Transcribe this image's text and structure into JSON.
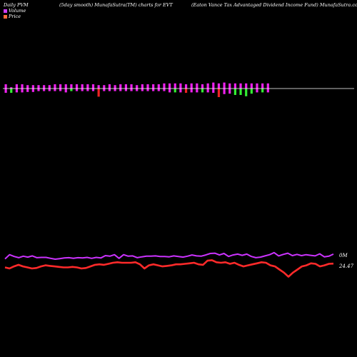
{
  "header": {
    "left": "Daily PVM",
    "middle": "(5day smooth) MunafaSutra(TM) charts for EVT",
    "right": "(Eaton  Vance  Tax Advantaged Dividend Income  Fund) MunafaSutra.com"
  },
  "legend": {
    "items": [
      {
        "label": "Volume",
        "color": "#d03cff"
      },
      {
        "label": "Price",
        "color": "#ff6a3c"
      }
    ]
  },
  "colors": {
    "background": "#000000",
    "volume_line": "#cc33ff",
    "price_line": "#ff2a2a",
    "bar_up": "#ee22ee",
    "bar_down": "#33ee33",
    "bar_red": "#ee2222",
    "baseline": "#ffffff"
  },
  "chart_data": [
    {
      "type": "bar",
      "name": "volume-pvm-bars",
      "bars": [
        {
          "up": 1.0,
          "down": 1.0,
          "color": "up"
        },
        {
          "up": 0.3,
          "down": 1.0,
          "color": "down"
        },
        {
          "up": 1.0,
          "down": 0.9,
          "color": "up"
        },
        {
          "up": 1.0,
          "down": 0.9,
          "color": "up"
        },
        {
          "up": 0.8,
          "down": 0.8,
          "color": "up"
        },
        {
          "up": 0.8,
          "down": 0.8,
          "color": "up"
        },
        {
          "up": 0.8,
          "down": 0.6,
          "color": "up"
        },
        {
          "up": 0.8,
          "down": 0.6,
          "color": "up"
        },
        {
          "up": 0.8,
          "down": 0.6,
          "color": "up"
        },
        {
          "up": 1.0,
          "down": 0.6,
          "color": "up"
        },
        {
          "up": 1.0,
          "down": 0.6,
          "color": "up"
        },
        {
          "up": 1.0,
          "down": 0.9,
          "color": "up"
        },
        {
          "up": 1.0,
          "down": 0.6,
          "color": "down"
        },
        {
          "up": 1.0,
          "down": 0.6,
          "color": "up"
        },
        {
          "up": 1.0,
          "down": 0.6,
          "color": "up"
        },
        {
          "up": 1.0,
          "down": 0.6,
          "color": "up"
        },
        {
          "up": 1.0,
          "down": 0.6,
          "color": "up"
        },
        {
          "up": 0.8,
          "down": 1.9,
          "color": "red"
        },
        {
          "up": 0.8,
          "down": 0.6,
          "color": "up"
        },
        {
          "up": 1.0,
          "down": 0.6,
          "color": "up"
        },
        {
          "up": 0.8,
          "down": 0.6,
          "color": "up"
        },
        {
          "up": 1.0,
          "down": 0.6,
          "color": "up"
        },
        {
          "up": 1.0,
          "down": 0.6,
          "color": "up"
        },
        {
          "up": 1.0,
          "down": 0.6,
          "color": "up"
        },
        {
          "up": 0.8,
          "down": 0.6,
          "color": "up"
        },
        {
          "up": 1.0,
          "down": 0.6,
          "color": "up"
        },
        {
          "up": 1.0,
          "down": 0.6,
          "color": "up"
        },
        {
          "up": 1.0,
          "down": 0.6,
          "color": "up"
        },
        {
          "up": 1.0,
          "down": 0.6,
          "color": "up"
        },
        {
          "up": 1.2,
          "down": 0.6,
          "color": "up"
        },
        {
          "up": 1.2,
          "down": 0.9,
          "color": "up"
        },
        {
          "up": 1.2,
          "down": 0.9,
          "color": "down"
        },
        {
          "up": 1.2,
          "down": 0.9,
          "color": "up"
        },
        {
          "up": 1.0,
          "down": 1.0,
          "color": "red"
        },
        {
          "up": 1.2,
          "down": 0.9,
          "color": "up"
        },
        {
          "up": 1.2,
          "down": 0.9,
          "color": "up"
        },
        {
          "up": 1.0,
          "down": 0.9,
          "color": "down"
        },
        {
          "up": 1.2,
          "down": 0.9,
          "color": "up"
        },
        {
          "up": 1.4,
          "down": 1.0,
          "color": "up"
        },
        {
          "up": 1.2,
          "down": 2.0,
          "color": "red"
        },
        {
          "up": 1.4,
          "down": 1.3,
          "color": "up"
        },
        {
          "up": 1.2,
          "down": 1.2,
          "color": "up"
        },
        {
          "up": 1.2,
          "down": 1.5,
          "color": "down"
        },
        {
          "up": 1.2,
          "down": 1.5,
          "color": "down"
        },
        {
          "up": 1.2,
          "down": 1.8,
          "color": "down"
        },
        {
          "up": 1.2,
          "down": 1.2,
          "color": "down"
        },
        {
          "up": 1.2,
          "down": 0.9,
          "color": "up"
        },
        {
          "up": 1.2,
          "down": 0.9,
          "color": "down"
        },
        {
          "up": 1.2,
          "down": 0.9,
          "color": "up"
        }
      ]
    },
    {
      "type": "line",
      "name": "Volume",
      "label": "0M",
      "values": [
        2.0,
        3.4,
        2.8,
        2.4,
        2.9,
        2.6,
        3.0,
        2.4,
        2.5,
        2.5,
        2.2,
        1.9,
        2.1,
        2.3,
        2.4,
        2.2,
        2.4,
        2.3,
        2.5,
        2.2,
        2.5,
        2.3,
        3.1,
        2.9,
        3.4,
        2.2,
        3.4,
        2.9,
        3.0,
        2.4,
        2.7,
        2.9,
        2.9,
        3.0,
        2.8,
        2.8,
        2.7,
        3.0,
        2.8,
        2.6,
        2.9,
        3.3,
        3.0,
        2.9,
        3.3,
        3.8,
        3.9,
        3.3,
        3.8,
        2.8,
        3.3,
        3.6,
        3.2,
        3.6,
        2.8,
        2.4,
        2.6,
        3.0,
        3.4,
        4.1,
        3.0,
        3.5,
        3.9,
        3.1,
        3.5,
        3.1,
        3.4,
        3.2,
        3.0,
        3.7,
        2.7,
        2.9,
        3.6
      ]
    },
    {
      "type": "line",
      "name": "Price",
      "label": "24.47",
      "values": [
        24.1,
        24.0,
        24.2,
        24.35,
        24.2,
        24.1,
        24.0,
        24.05,
        24.2,
        24.3,
        24.25,
        24.2,
        24.15,
        24.1,
        24.1,
        24.15,
        24.1,
        24.0,
        24.05,
        24.2,
        24.35,
        24.4,
        24.35,
        24.45,
        24.55,
        24.6,
        24.55,
        24.55,
        24.55,
        24.6,
        24.4,
        24.0,
        24.3,
        24.4,
        24.3,
        24.2,
        24.25,
        24.3,
        24.4,
        24.4,
        24.45,
        24.5,
        24.55,
        24.4,
        24.35,
        24.75,
        24.8,
        24.6,
        24.55,
        24.6,
        24.45,
        24.55,
        24.35,
        24.2,
        24.3,
        24.4,
        24.5,
        24.6,
        24.55,
        24.3,
        24.2,
        23.9,
        23.6,
        23.2,
        23.6,
        23.9,
        24.2,
        24.3,
        24.5,
        24.45,
        24.2,
        24.3,
        24.45,
        24.47
      ]
    }
  ]
}
